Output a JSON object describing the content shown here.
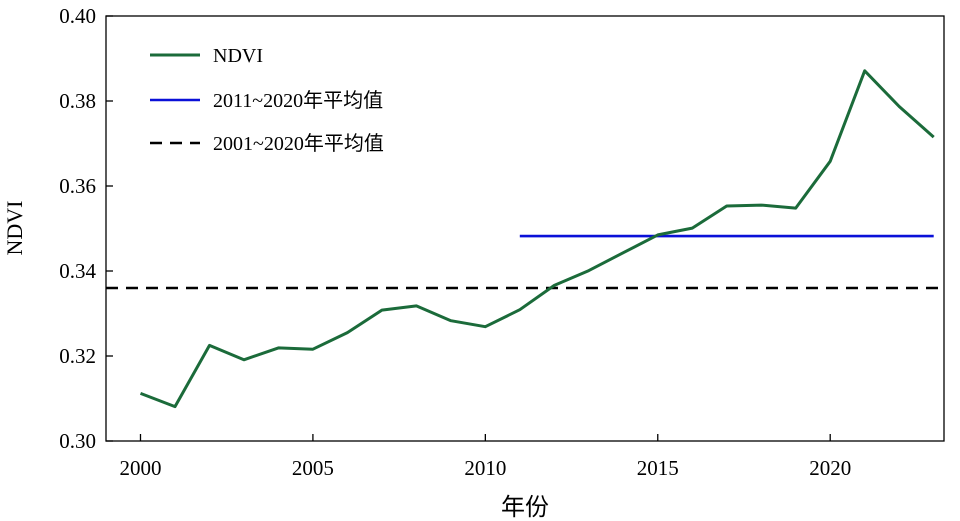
{
  "chart_data": {
    "type": "line",
    "xlabel": "年份",
    "ylabel": "NDVI",
    "xlim": [
      1999.0,
      2023.3
    ],
    "ylim": [
      0.3,
      0.4
    ],
    "xticks": [
      2000,
      2005,
      2010,
      2015,
      2020
    ],
    "yticks": [
      0.3,
      0.32,
      0.34,
      0.36,
      0.38,
      0.4
    ],
    "xtick_labels": [
      "2000",
      "2005",
      "2010",
      "2015",
      "2020"
    ],
    "ytick_labels": [
      "0.30",
      "0.32",
      "0.34",
      "0.36",
      "0.38",
      "0.40"
    ],
    "grid": false,
    "legend_position": "top-left",
    "series": [
      {
        "name": "NDVI",
        "style": "solid",
        "color": "#1b6b3a",
        "x": [
          2000,
          2001,
          2002,
          2003,
          2004,
          2005,
          2006,
          2007,
          2008,
          2009,
          2010,
          2011,
          2012,
          2013,
          2014,
          2015,
          2016,
          2017,
          2018,
          2019,
          2020,
          2021,
          2022,
          2023
        ],
        "y": [
          0.3112,
          0.3081,
          0.3225,
          0.3191,
          0.3219,
          0.3216,
          0.3255,
          0.3308,
          0.3318,
          0.3283,
          0.3269,
          0.3309,
          0.3366,
          0.3401,
          0.3443,
          0.3485,
          0.3501,
          0.3553,
          0.3555,
          0.3548,
          0.3658,
          0.3871,
          0.3787,
          0.3715
        ]
      },
      {
        "name": "2011~2020年平均值",
        "style": "solid",
        "color": "#0a10d8",
        "x": [
          2011,
          2023
        ],
        "y": [
          0.3482,
          0.3482
        ]
      },
      {
        "name": "2001~2020年平均值",
        "style": "dashed",
        "color": "#000000",
        "x": [
          1999.0,
          2023.3
        ],
        "y": [
          0.336,
          0.336
        ]
      }
    ]
  }
}
